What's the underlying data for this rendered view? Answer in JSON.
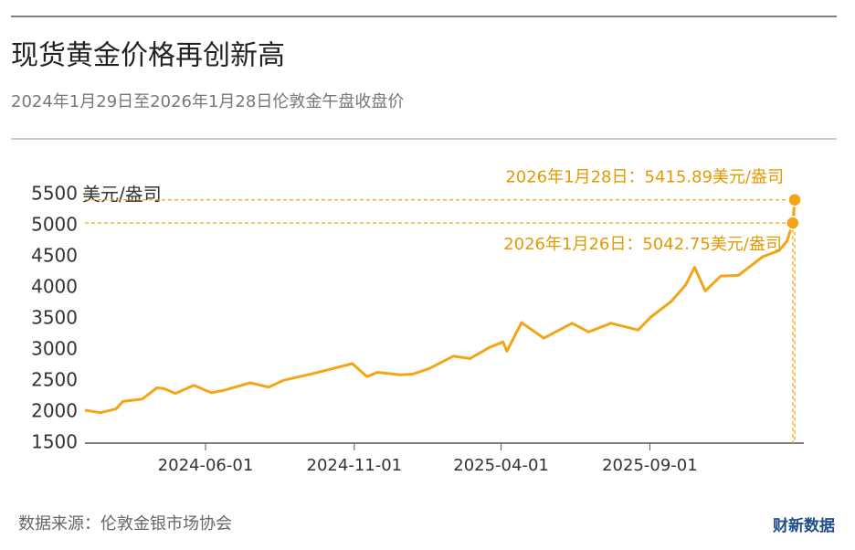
{
  "chart_data": {
    "type": "line",
    "title": "现货黄金价格再创新高",
    "subtitle": "2024年1月29日至2026年1月28日伦敦金午盘收盘价",
    "y_label": "美元/盎司",
    "source": "数据来源：伦敦金银市场协会",
    "logo": "财新数据",
    "color": "#f2a516",
    "x": [
      "2024-01-29",
      "2024-02-14",
      "2024-03-01",
      "2024-03-08",
      "2024-03-28",
      "2024-04-12",
      "2024-04-19",
      "2024-05-01",
      "2024-05-20",
      "2024-06-07",
      "2024-06-20",
      "2024-07-17",
      "2024-08-05",
      "2024-08-20",
      "2024-09-20",
      "2024-10-30",
      "2024-11-14",
      "2024-11-25",
      "2024-12-18",
      "2024-12-31",
      "2025-01-17",
      "2025-02-11",
      "2025-02-28",
      "2025-03-20",
      "2025-04-03",
      "2025-04-07",
      "2025-04-22",
      "2025-05-15",
      "2025-06-13",
      "2025-06-30",
      "2025-07-23",
      "2025-08-20",
      "2025-09-02",
      "2025-09-23",
      "2025-10-08",
      "2025-10-17",
      "2025-10-28",
      "2025-11-13",
      "2025-12-01",
      "2025-12-26",
      "2026-01-12",
      "2026-01-20",
      "2026-01-26",
      "2026-01-28"
    ],
    "values": [
      2030,
      1990,
      2050,
      2170,
      2210,
      2390,
      2380,
      2300,
      2430,
      2310,
      2350,
      2470,
      2400,
      2510,
      2620,
      2780,
      2570,
      2640,
      2600,
      2610,
      2700,
      2900,
      2860,
      3040,
      3130,
      2980,
      3440,
      3190,
      3430,
      3290,
      3430,
      3320,
      3530,
      3780,
      4050,
      4330,
      3950,
      4190,
      4200,
      4500,
      4600,
      4750,
      5042.75,
      5415.89
    ],
    "xlim": [
      "2024-01-29",
      "2026-01-28"
    ],
    "xticks": [
      "2024-06-01",
      "2024-11-01",
      "2025-04-01",
      "2025-09-01"
    ],
    "ylim": [
      1500,
      5500
    ],
    "yticks": [
      1500,
      2000,
      2500,
      3000,
      3500,
      4000,
      4500,
      5000,
      5500
    ],
    "annotations": [
      {
        "text": "2026年1月28日：5415.89美元/盎司",
        "x": "2026-01-28",
        "value": 5415.89
      },
      {
        "text": "2026年1月26日：5042.75美元/盎司",
        "x": "2026-01-26",
        "value": 5042.75
      }
    ]
  }
}
